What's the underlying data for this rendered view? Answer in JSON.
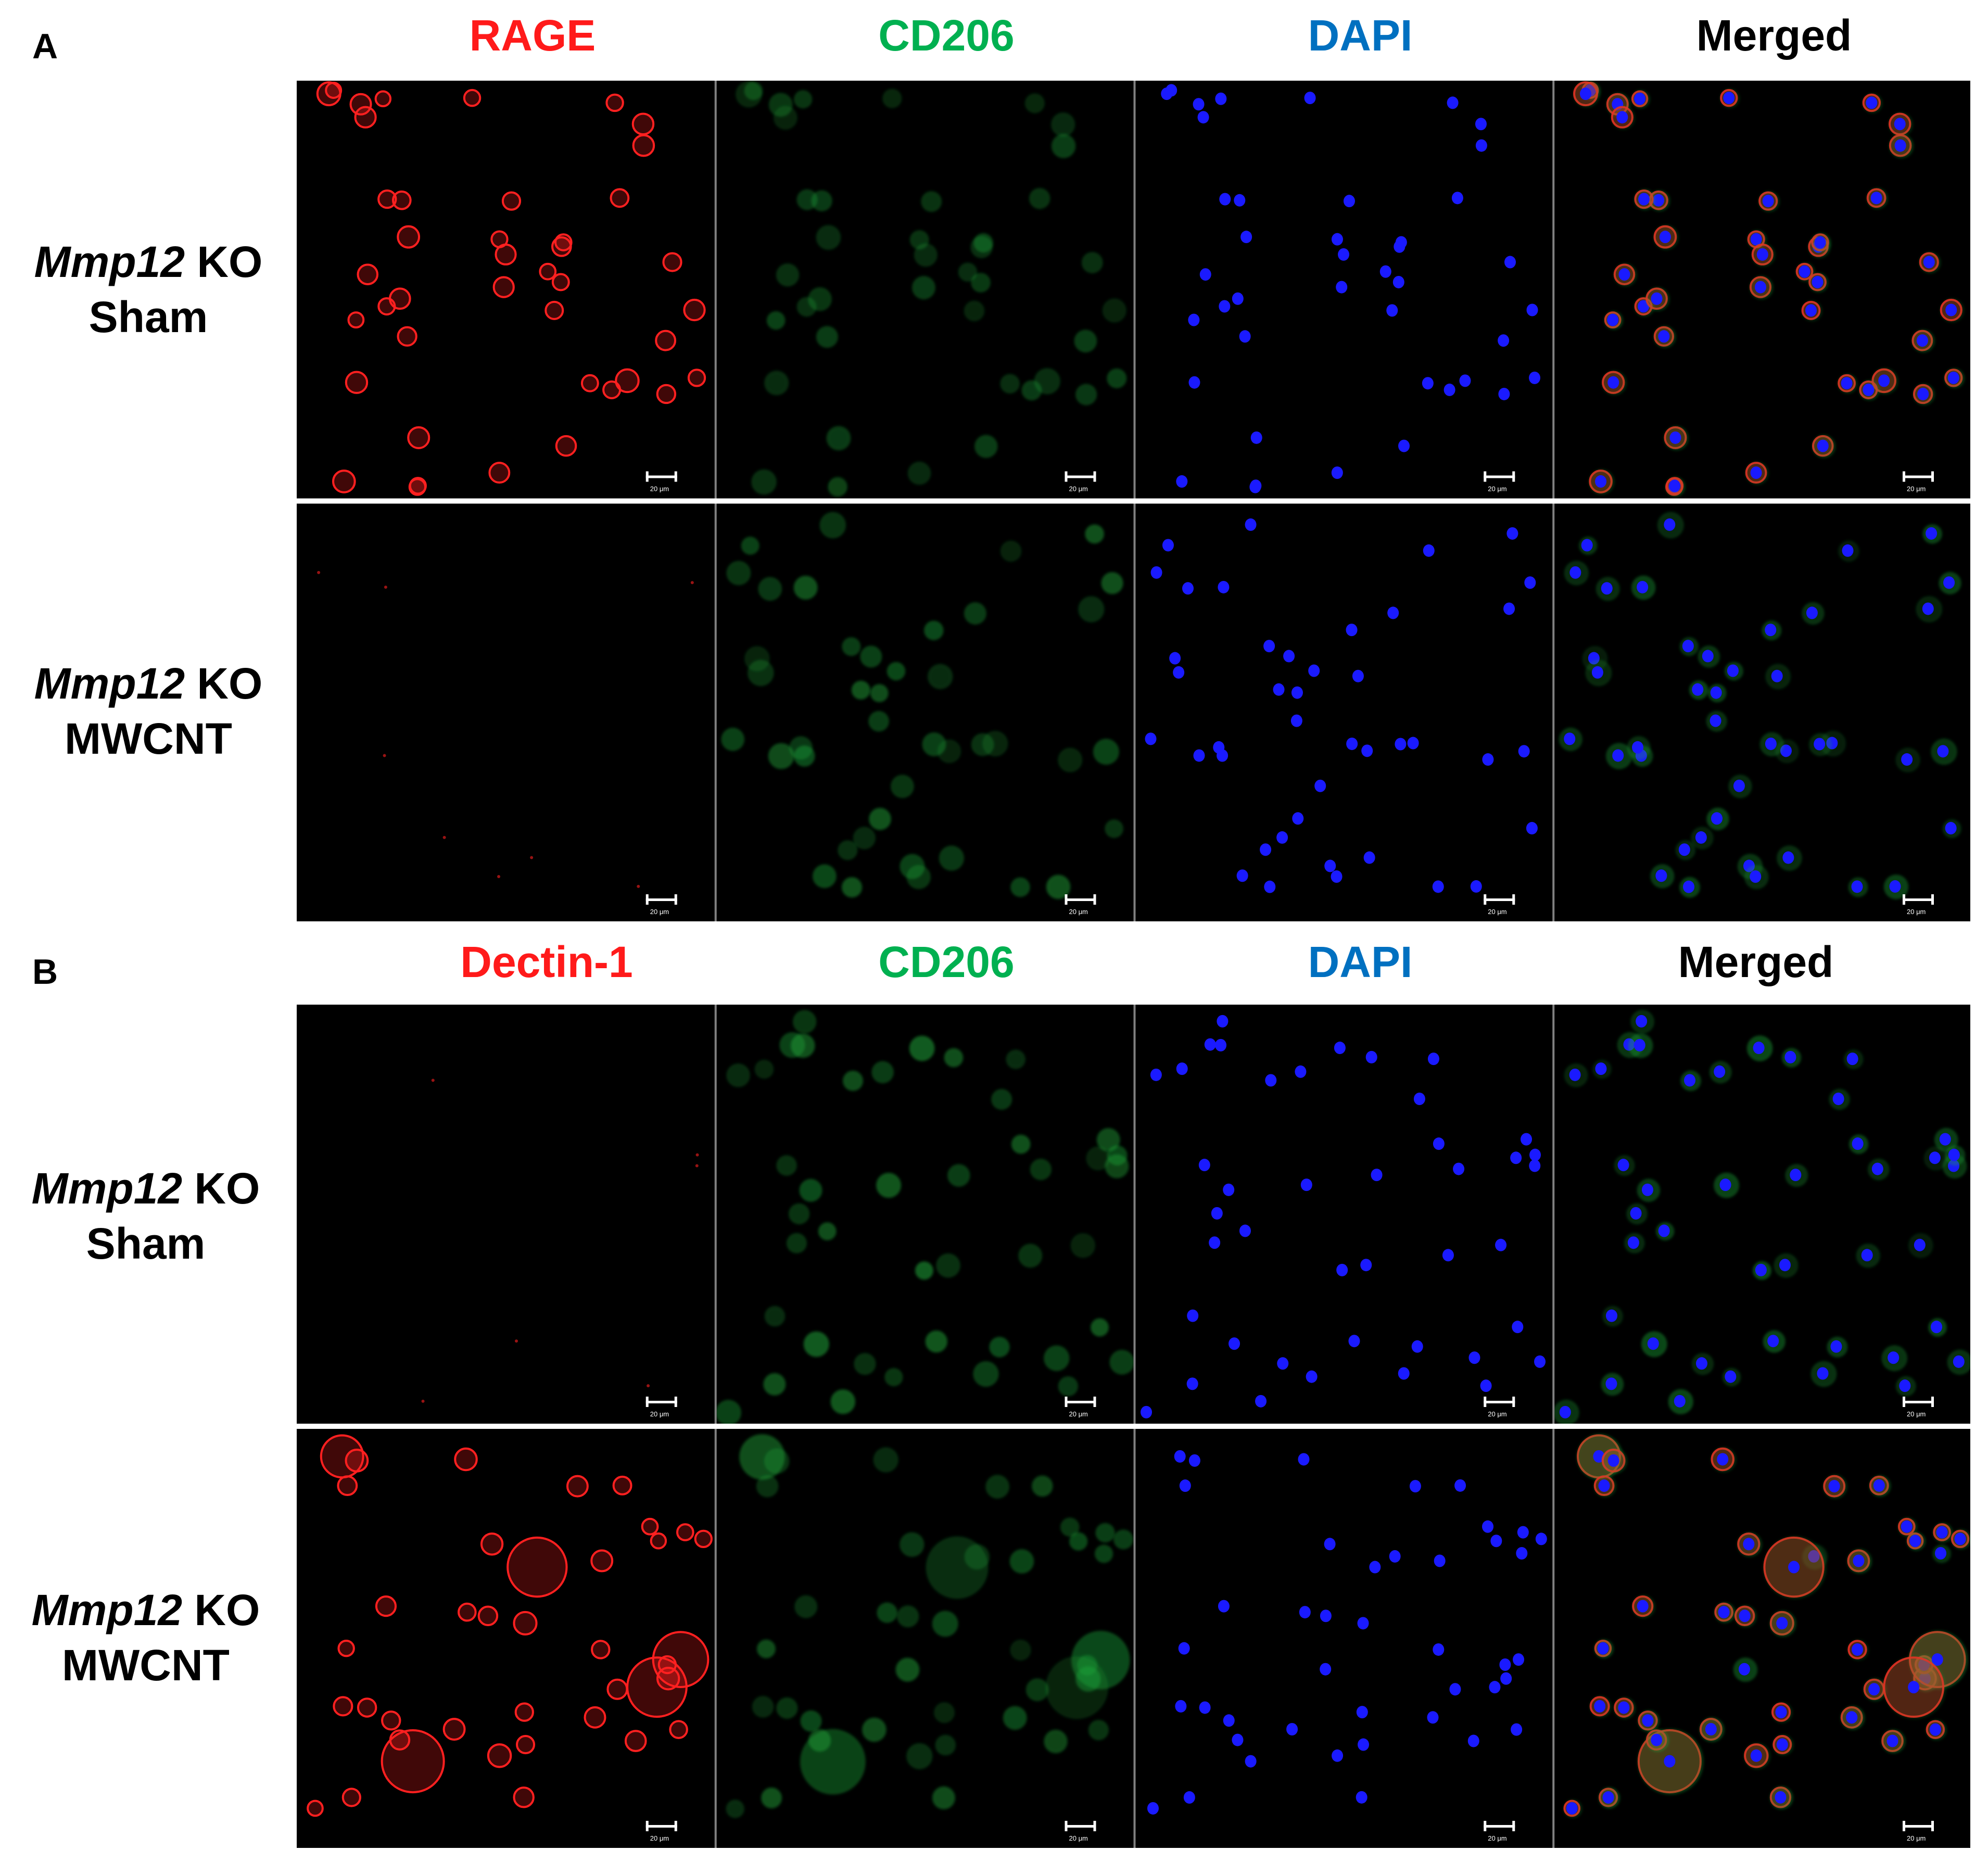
{
  "panels": [
    {
      "letter": "A",
      "columns": [
        {
          "label": "RAGE",
          "color": "#ff1a1a"
        },
        {
          "label": "CD206",
          "color": "#00b050"
        },
        {
          "label": "DAPI",
          "color": "#0070c0"
        },
        {
          "label": "Merged",
          "color": "#000000"
        }
      ],
      "rows": [
        {
          "gene": "Mmp12",
          "line1_suffix": " KO",
          "line2": "Sham"
        },
        {
          "gene": "Mmp12",
          "line1_suffix": " KO",
          "line2": "MWCNT"
        }
      ]
    },
    {
      "letter": "B",
      "columns": [
        {
          "label": "Dectin-1",
          "color": "#ff1a1a"
        },
        {
          "label": "CD206",
          "color": "#00b050"
        },
        {
          "label": "DAPI",
          "color": "#0070c0"
        },
        {
          "label": "Merged",
          "color": "#000000"
        }
      ],
      "rows": [
        {
          "gene": "Mmp12",
          "line1_suffix": " KO",
          "line2": "Sham"
        },
        {
          "gene": "Mmp12",
          "line1_suffix": " KO",
          "line2": "MWCNT"
        }
      ]
    }
  ],
  "scale_bar_label": "20 μm",
  "channel_colors": {
    "red": "#ff2020",
    "green": "#1fa83a",
    "blue": "#1a1aff"
  }
}
